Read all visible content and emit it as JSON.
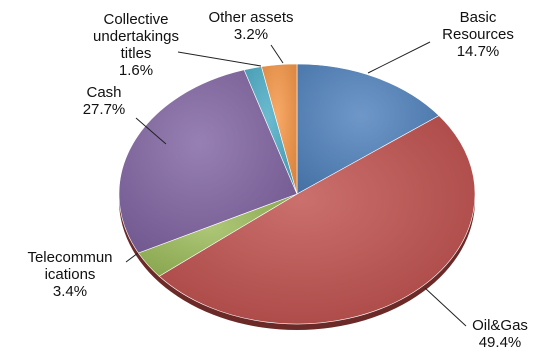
{
  "chart_data": {
    "type": "pie",
    "title": "",
    "slices": [
      {
        "label_lines": [
          "Basic",
          "Resources"
        ],
        "value": 14.7,
        "value_text": "14.7%",
        "color": "#4F81BD"
      },
      {
        "label_lines": [
          "Oil&Gas"
        ],
        "value": 49.4,
        "value_text": "49.4%",
        "color": "#C0504D"
      },
      {
        "label_lines": [
          "Telecommun",
          "ications"
        ],
        "value": 3.4,
        "value_text": "3.4%",
        "color": "#9BBB59"
      },
      {
        "label_lines": [
          "Cash"
        ],
        "value": 27.7,
        "value_text": "27.7%",
        "color": "#8064A2"
      },
      {
        "label_lines": [
          "Collective",
          "undertakings",
          "titles"
        ],
        "value": 1.6,
        "value_text": "1.6%",
        "color": "#4BACC6"
      },
      {
        "label_lines": [
          "Other assets"
        ],
        "value": 3.2,
        "value_text": "3.2%",
        "color": "#F79646"
      }
    ],
    "start_at": "12 o'clock",
    "direction": "clockwise",
    "legend": "none",
    "data_labels": "outside with leader lines"
  }
}
